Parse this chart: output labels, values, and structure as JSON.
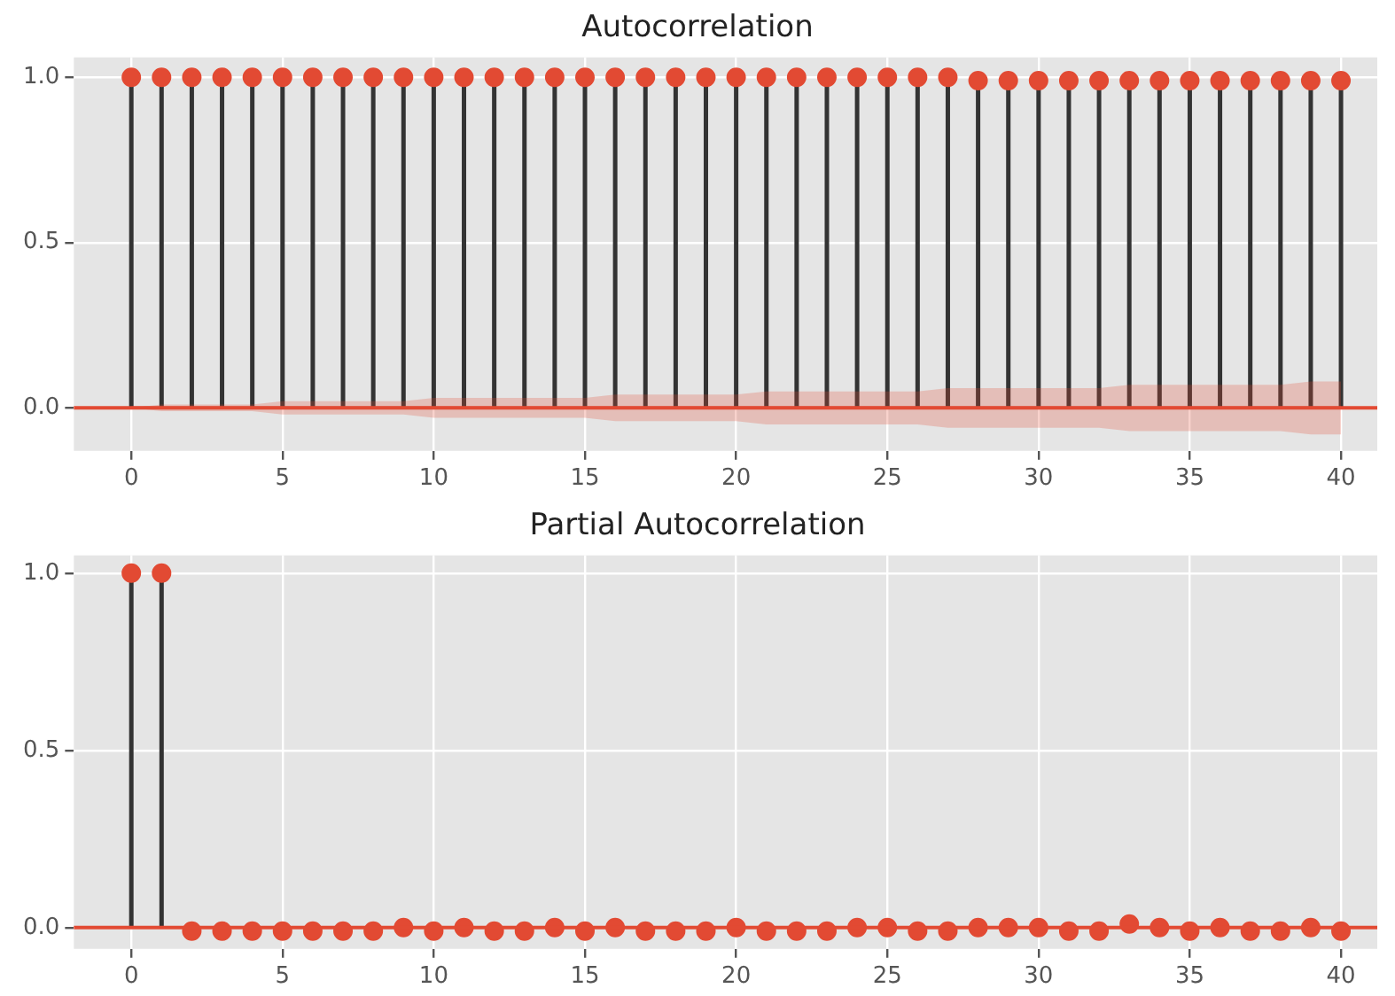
{
  "chart_data": [
    {
      "type": "lollipop",
      "title": "Autocorrelation",
      "x": [
        0,
        1,
        2,
        3,
        4,
        5,
        6,
        7,
        8,
        9,
        10,
        11,
        12,
        13,
        14,
        15,
        16,
        17,
        18,
        19,
        20,
        21,
        22,
        23,
        24,
        25,
        26,
        27,
        28,
        29,
        30,
        31,
        32,
        33,
        34,
        35,
        36,
        37,
        38,
        39,
        40
      ],
      "series": [
        {
          "color": "#e24a33",
          "values": [
            1,
            1,
            1,
            1,
            1,
            1,
            1,
            1,
            1,
            1,
            1,
            1,
            1,
            1,
            1,
            1,
            1,
            1,
            1,
            1,
            1,
            1,
            1,
            1,
            1,
            1,
            1,
            1,
            0.99,
            0.99,
            0.99,
            0.99,
            0.99,
            0.99,
            0.99,
            0.99,
            0.99,
            0.99,
            0.99,
            0.99,
            0.99
          ]
        },
        {
          "type": "line",
          "marker": "none",
          "color": "#e24a33",
          "values": [
            0,
            0,
            0,
            0,
            0,
            0,
            0,
            0,
            0,
            0,
            0,
            0,
            0,
            0,
            0,
            0,
            0,
            0,
            0,
            0,
            0,
            0,
            0,
            0,
            0,
            0,
            0,
            0,
            0,
            0,
            0,
            0,
            0,
            0,
            0,
            0,
            0,
            0,
            0,
            0,
            0
          ],
          "lower": [
            0,
            -0.01,
            -0.01,
            -0.01,
            -0.01,
            -0.02,
            -0.02,
            -0.02,
            -0.02,
            -0.02,
            -0.03,
            -0.03,
            -0.03,
            -0.03,
            -0.03,
            -0.03,
            -0.04,
            -0.04,
            -0.04,
            -0.04,
            -0.04,
            -0.05,
            -0.05,
            -0.05,
            -0.05,
            -0.05,
            -0.05,
            -0.06,
            -0.06,
            -0.06,
            -0.06,
            -0.06,
            -0.06,
            -0.07,
            -0.07,
            -0.07,
            -0.07,
            -0.07,
            -0.07,
            -0.08,
            -0.08
          ],
          "upper": [
            0,
            0.01,
            0.01,
            0.01,
            0.01,
            0.02,
            0.02,
            0.02,
            0.02,
            0.02,
            0.03,
            0.03,
            0.03,
            0.03,
            0.03,
            0.03,
            0.04,
            0.04,
            0.04,
            0.04,
            0.04,
            0.05,
            0.05,
            0.05,
            0.05,
            0.05,
            0.05,
            0.06,
            0.06,
            0.06,
            0.06,
            0.06,
            0.06,
            0.07,
            0.07,
            0.07,
            0.07,
            0.07,
            0.07,
            0.08,
            0.08
          ]
        }
      ],
      "xlim": [
        -1.9,
        41.2
      ],
      "xticks": [
        0,
        5,
        10,
        15,
        20,
        25,
        30,
        35,
        40
      ],
      "ylim": [
        -0.13,
        1.06
      ],
      "yticks": [
        {
          "value": 0,
          "label": "0.0"
        },
        {
          "value": 0.5,
          "label": "0.5"
        },
        {
          "value": 1,
          "label": "1.0"
        }
      ],
      "ref_lines": [
        {
          "axis": "y",
          "value": 0,
          "color": "#e24a33"
        }
      ],
      "grid": true,
      "marker": "circle"
    },
    {
      "type": "lollipop",
      "title": "Partial Autocorrelation",
      "x": [
        0,
        1,
        2,
        3,
        4,
        5,
        6,
        7,
        8,
        9,
        10,
        11,
        12,
        13,
        14,
        15,
        16,
        17,
        18,
        19,
        20,
        21,
        22,
        23,
        24,
        25,
        26,
        27,
        28,
        29,
        30,
        31,
        32,
        33,
        34,
        35,
        36,
        37,
        38,
        39,
        40
      ],
      "series": [
        {
          "color": "#e24a33",
          "values": [
            1,
            1,
            -0.01,
            -0.01,
            -0.01,
            -0.01,
            -0.01,
            -0.01,
            -0.01,
            0,
            -0.01,
            0,
            -0.01,
            -0.01,
            0,
            -0.01,
            0,
            -0.01,
            -0.01,
            -0.01,
            0,
            -0.01,
            -0.01,
            -0.01,
            0,
            0,
            -0.01,
            -0.01,
            0,
            0,
            0,
            -0.01,
            -0.01,
            0.01,
            0,
            -0.01,
            0,
            -0.01,
            -0.01,
            0,
            -0.01
          ]
        }
      ],
      "xlim": [
        -1.9,
        41.2
      ],
      "xticks": [
        0,
        5,
        10,
        15,
        20,
        25,
        30,
        35,
        40
      ],
      "ylim": [
        -0.06,
        1.05
      ],
      "yticks": [
        {
          "value": 0,
          "label": "0.0"
        },
        {
          "value": 0.5,
          "label": "0.5"
        },
        {
          "value": 1,
          "label": "1.0"
        }
      ],
      "ref_lines": [
        {
          "axis": "y",
          "value": 0,
          "color": "#e24a33"
        }
      ],
      "grid": true,
      "marker": "circle"
    }
  ]
}
